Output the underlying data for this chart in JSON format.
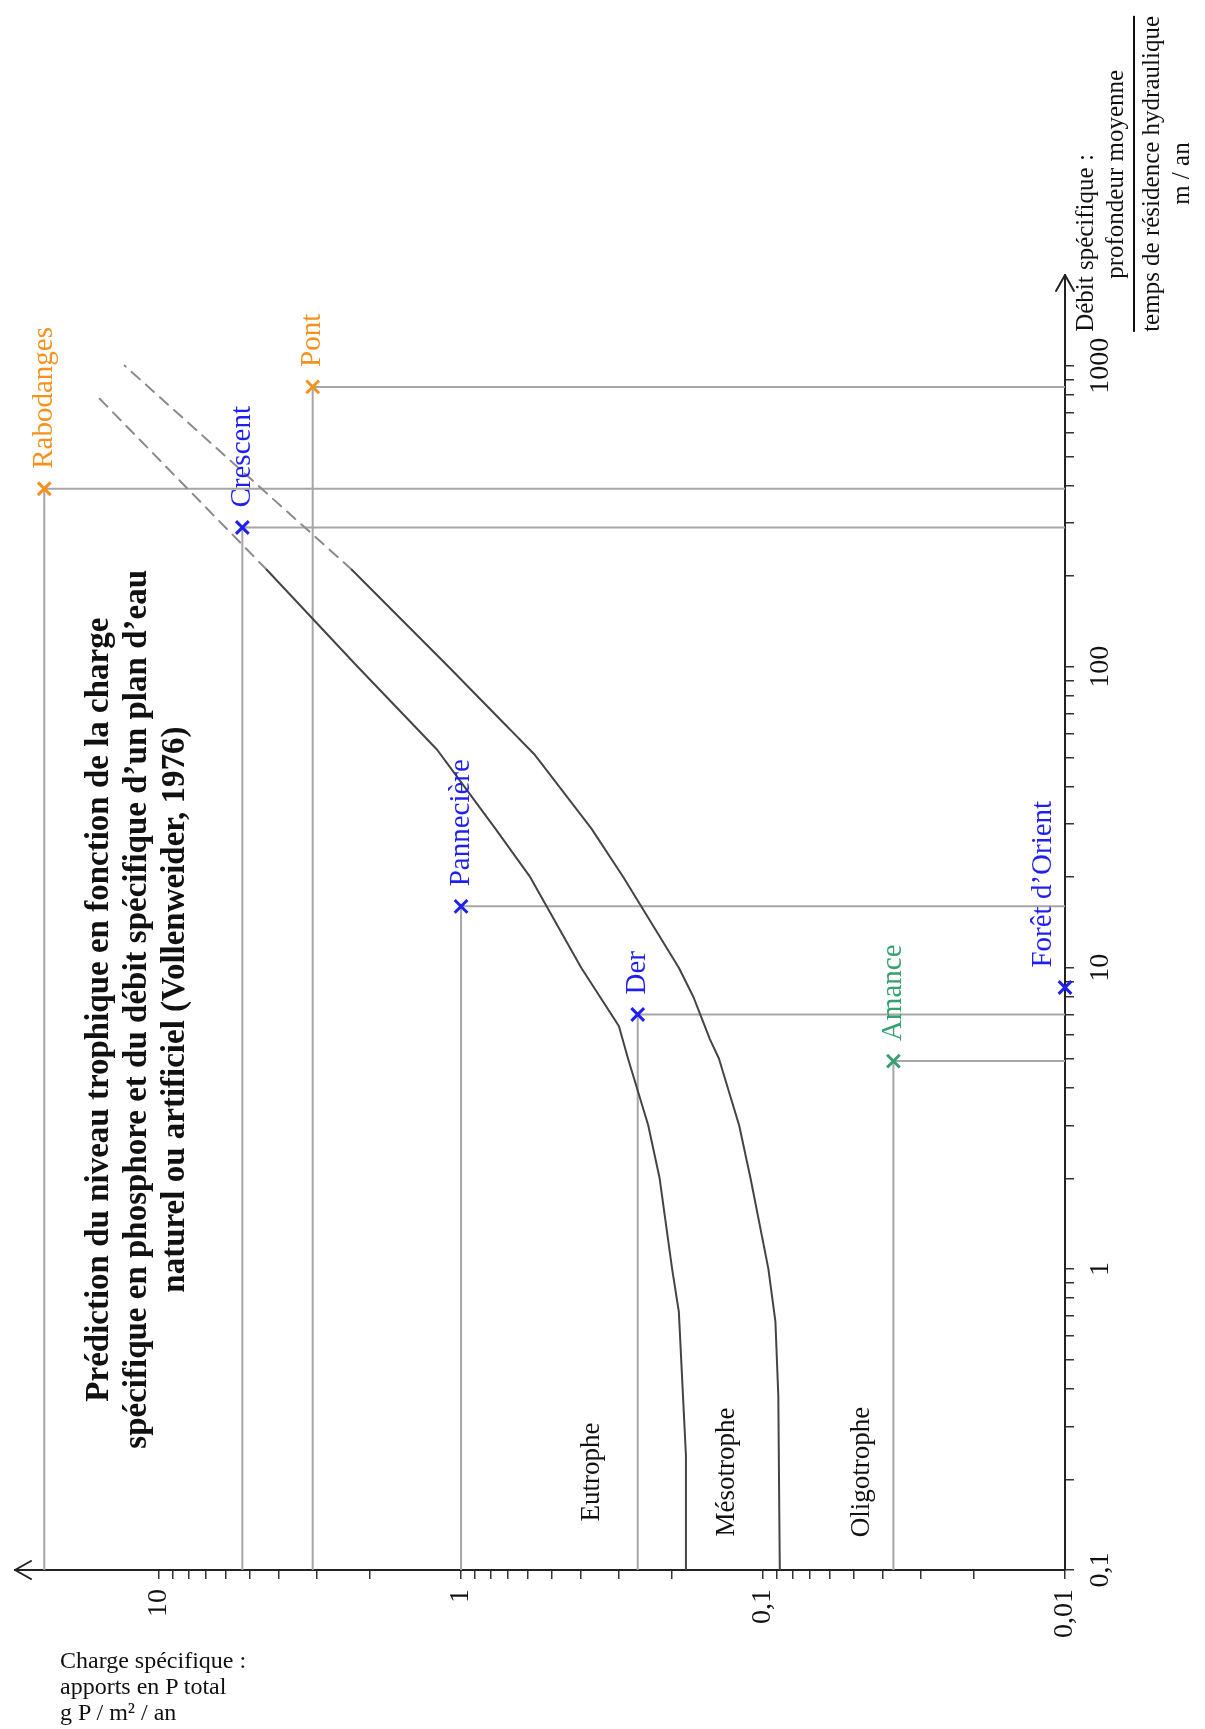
{
  "chart_data": {
    "type": "scatter",
    "title": "Prédiction du niveau trophique en fonction de la charge\nspécifique en phosphore et du débit spécifique d’un plan d’eau\nnaturel ou artificiel (Vollenweider, 1976)",
    "xlabel": "Charge spécifique :\napports en P total\ng P / m² / an",
    "ylabel": "Débit spécifique :\nprofondeur moyenne\ntemps de résidence hydraulique\nm / an",
    "log": "xy",
    "xlim": [
      30,
      0.01
    ],
    "xticks": [
      {
        "value": 0.01,
        "label": "0,01"
      },
      {
        "value": 0.02,
        "label": null
      },
      {
        "value": 0.03,
        "label": null
      },
      {
        "value": 0.04,
        "label": null
      },
      {
        "value": 0.05,
        "label": null
      },
      {
        "value": 0.06,
        "label": null
      },
      {
        "value": 0.07,
        "label": null
      },
      {
        "value": 0.08,
        "label": null
      },
      {
        "value": 0.09,
        "label": null
      },
      {
        "value": 0.1,
        "label": "0,1"
      },
      {
        "value": 0.2,
        "label": null
      },
      {
        "value": 0.3,
        "label": null
      },
      {
        "value": 0.4,
        "label": null
      },
      {
        "value": 0.5,
        "label": null
      },
      {
        "value": 0.6,
        "label": null
      },
      {
        "value": 0.7,
        "label": null
      },
      {
        "value": 0.8,
        "label": null
      },
      {
        "value": 0.9,
        "label": null
      },
      1,
      {
        "value": 2,
        "label": null
      },
      {
        "value": 3,
        "label": null
      },
      {
        "value": 4,
        "label": null
      },
      {
        "value": 5,
        "label": null
      },
      {
        "value": 6,
        "label": null
      },
      {
        "value": 7,
        "label": null
      },
      {
        "value": 8,
        "label": null
      },
      {
        "value": 9,
        "label": null
      },
      10
    ],
    "ylim": [
      0.1,
      2000
    ],
    "yticks": [
      {
        "value": 0.1,
        "label": "0,1"
      },
      {
        "value": 0.2,
        "label": null
      },
      {
        "value": 0.3,
        "label": null
      },
      {
        "value": 0.4,
        "label": null
      },
      {
        "value": 0.5,
        "label": null
      },
      {
        "value": 0.6,
        "label": null
      },
      {
        "value": 0.7,
        "label": null
      },
      {
        "value": 0.8,
        "label": null
      },
      {
        "value": 0.9,
        "label": null
      },
      1,
      {
        "value": 2,
        "label": null
      },
      {
        "value": 3,
        "label": null
      },
      {
        "value": 4,
        "label": null
      },
      {
        "value": 5,
        "label": null
      },
      {
        "value": 6,
        "label": null
      },
      {
        "value": 7,
        "label": null
      },
      {
        "value": 8,
        "label": null
      },
      {
        "value": 9,
        "label": null
      },
      10,
      {
        "value": 20,
        "label": null
      },
      {
        "value": 30,
        "label": null
      },
      {
        "value": 40,
        "label": null
      },
      {
        "value": 50,
        "label": null
      },
      {
        "value": 60,
        "label": null
      },
      {
        "value": 70,
        "label": null
      },
      {
        "value": 80,
        "label": null
      },
      {
        "value": 90,
        "label": null
      },
      100,
      {
        "value": 200,
        "label": null
      },
      {
        "value": 300,
        "label": null
      },
      {
        "value": 400,
        "label": null
      },
      {
        "value": 500,
        "label": null
      },
      {
        "value": 600,
        "label": null
      },
      {
        "value": 700,
        "label": null
      },
      {
        "value": 800,
        "label": null
      },
      {
        "value": 900,
        "label": null
      },
      1000
    ],
    "series": [
      {
        "type": "line",
        "color": "#444444",
        "line_style": "solid",
        "marker": "none",
        "x": [
          0.18,
          0.18,
          0.19,
          0.2,
          0.22,
          0.24,
          0.28,
          0.3,
          0.4,
          0.59,
          0.77,
          1.2,
          2.2,
          4.4
        ],
        "values": [
          0.1,
          0.24,
          0.72,
          1,
          2,
          3,
          5,
          6.4,
          10,
          20,
          29,
          53,
          100,
          210
        ]
      },
      {
        "type": "line",
        "color": "#8a8a8a",
        "line_style": "dashed",
        "marker": "none",
        "x": [
          4.4,
          16
        ],
        "values": [
          210,
          790
        ]
      },
      {
        "type": "line",
        "color": "#444444",
        "line_style": "solid",
        "marker": "none",
        "x": [
          0.088,
          0.089,
          0.091,
          0.096,
          0.11,
          0.12,
          0.14,
          0.15,
          0.17,
          0.19,
          0.29,
          0.37,
          0.57,
          1.1,
          2.3
        ],
        "values": [
          0.1,
          0.38,
          0.67,
          1,
          2,
          3,
          5,
          5.8,
          8,
          10,
          20,
          29,
          51,
          100,
          210
        ]
      },
      {
        "type": "line",
        "color": "#8a8a8a",
        "line_style": "dashed",
        "marker": "none",
        "x": [
          2.3,
          13
        ],
        "values": [
          210,
          1000
        ]
      },
      {
        "type": "line",
        "color": "#a6a6a6",
        "line_style": "solid",
        "marker": "none",
        "x": [
          0.01,
          24,
          24
        ],
        "values": [
          390,
          390,
          0.1
        ]
      },
      {
        "type": "line",
        "color": "#a6a6a6",
        "line_style": "solid",
        "marker": "none",
        "x": [
          0.01,
          3.1,
          3.1
        ],
        "values": [
          850,
          850,
          0.1
        ]
      },
      {
        "type": "line",
        "color": "#a6a6a6",
        "line_style": "solid",
        "marker": "none",
        "x": [
          0.01,
          5.3,
          5.3
        ],
        "values": [
          290,
          290,
          0.1
        ]
      },
      {
        "type": "line",
        "color": "#a6a6a6",
        "line_style": "solid",
        "marker": "none",
        "x": [
          0.01,
          1,
          1
        ],
        "values": [
          16,
          16,
          0.1
        ]
      },
      {
        "type": "line",
        "color": "#a6a6a6",
        "line_style": "solid",
        "marker": "none",
        "x": [
          0.01,
          0.26,
          0.26
        ],
        "values": [
          7,
          7,
          0.1
        ]
      },
      {
        "type": "line",
        "color": "#a6a6a6",
        "line_style": "solid",
        "marker": "none",
        "x": [
          0.01,
          0.037,
          0.037
        ],
        "values": [
          4.9,
          4.9,
          0.1
        ]
      },
      {
        "name": "Rabodanges",
        "type": "scatter",
        "color": "#f5921e",
        "marker": "cross",
        "x": [
          24
        ],
        "values": [
          390
        ]
      },
      {
        "name": "Pont",
        "type": "scatter",
        "color": "#f5921e",
        "marker": "cross",
        "x": [
          3.1
        ],
        "values": [
          850
        ]
      },
      {
        "name": "Crescent",
        "type": "scatter",
        "color": "#1f1ff0",
        "marker": "cross",
        "x": [
          5.3
        ],
        "values": [
          290
        ]
      },
      {
        "name": "Pannecière",
        "type": "scatter",
        "color": "#1f1ff0",
        "marker": "cross",
        "x": [
          1
        ],
        "values": [
          16
        ]
      },
      {
        "name": "Der",
        "type": "scatter",
        "color": "#1f1ff0",
        "marker": "cross",
        "x": [
          0.26
        ],
        "values": [
          7
        ]
      },
      {
        "name": "Amance",
        "type": "scatter",
        "color": "#35a070",
        "marker": "cross",
        "x": [
          0.037
        ],
        "values": [
          4.9
        ]
      },
      {
        "name": "Forêt d’Orient",
        "type": "scatter",
        "color": "#1f1ff0",
        "marker": "cross",
        "x": [
          0.01
        ],
        "values": [
          8.6
        ]
      }
    ],
    "annotations": [
      "Eutrophe",
      "Mésotrophe",
      "Oligotrophe"
    ]
  }
}
